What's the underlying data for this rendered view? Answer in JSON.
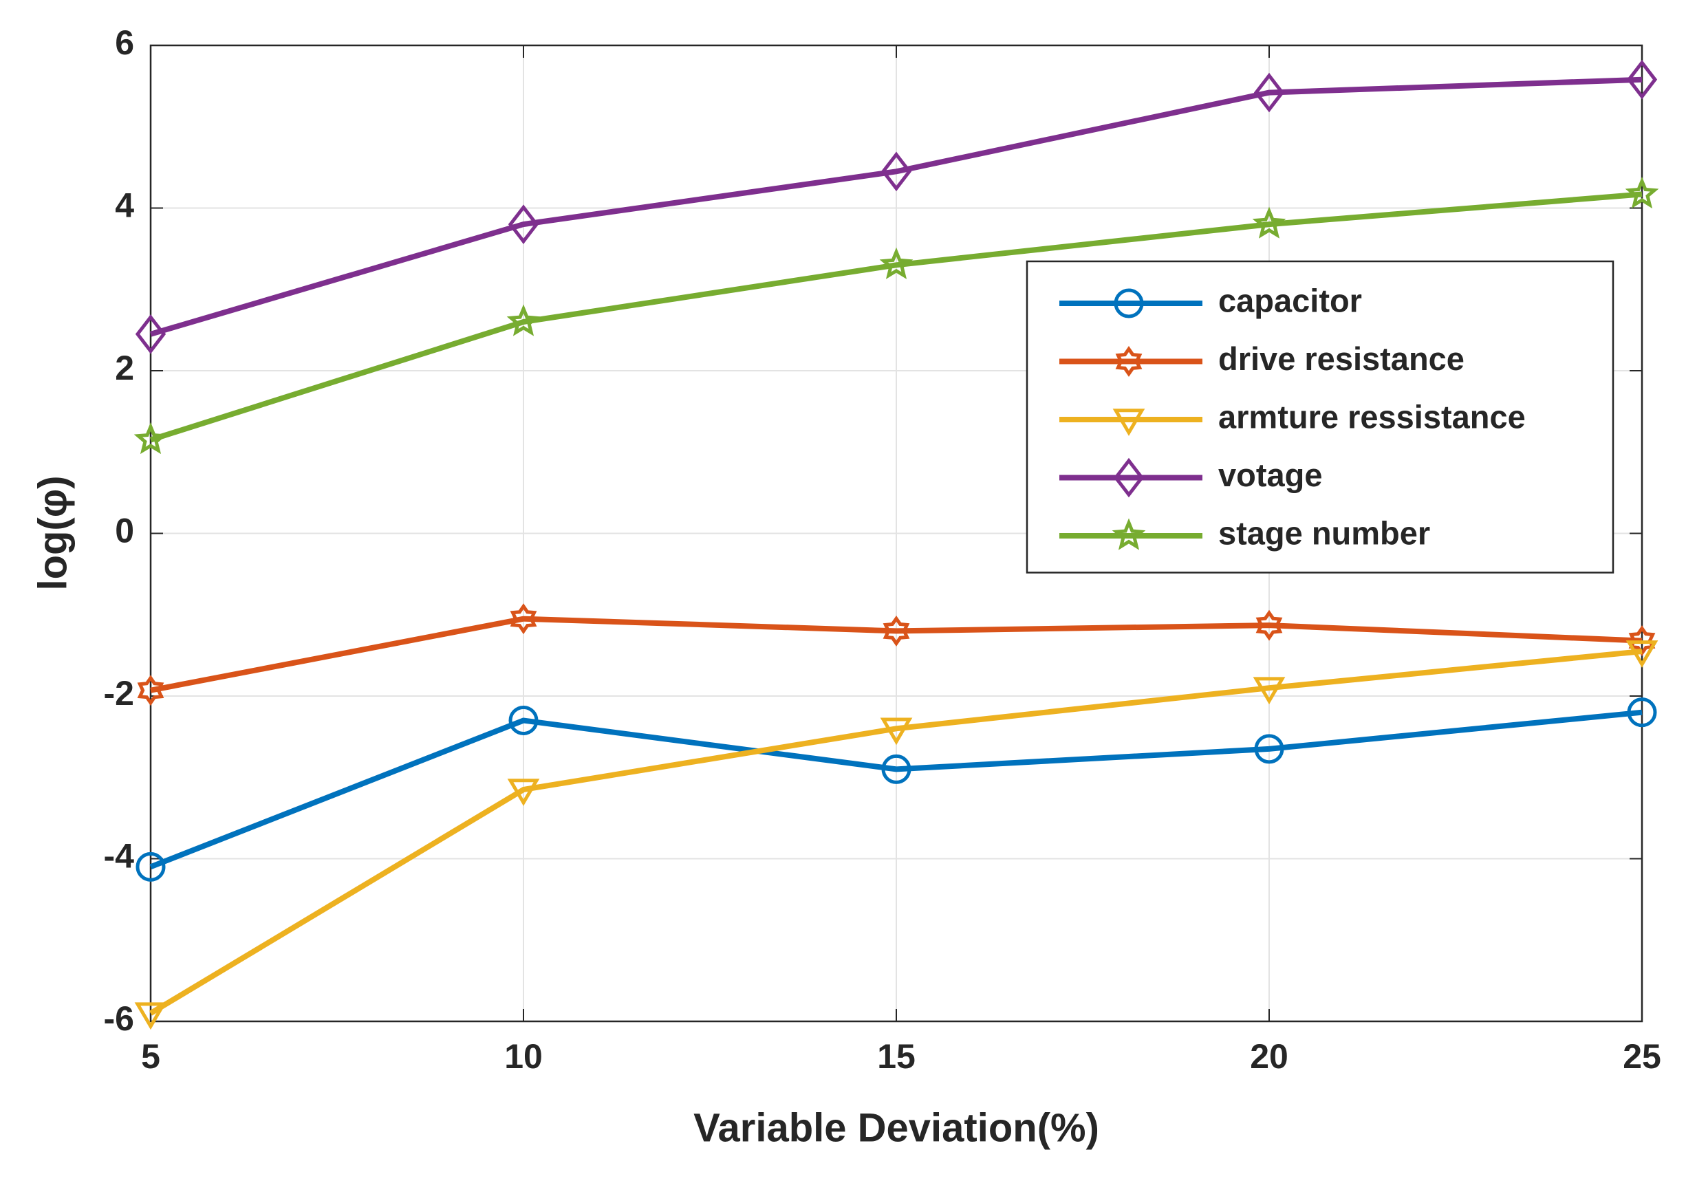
{
  "chart_data": {
    "type": "line",
    "x_label": "Variable Deviation(%)",
    "y_label": "log(φ)",
    "x": [
      5,
      10,
      15,
      20,
      25
    ],
    "series": [
      {
        "name": "capacitor",
        "color": "#0072bd",
        "marker": "circle",
        "values": [
          -4.1,
          -2.3,
          -2.9,
          -2.65,
          -2.2
        ]
      },
      {
        "name": "drive resistance",
        "color": "#d95319",
        "marker": "hexagram",
        "values": [
          -1.93,
          -1.05,
          -1.2,
          -1.13,
          -1.32
        ]
      },
      {
        "name": "armture ressistance",
        "color": "#edb120",
        "marker": "triangle-down",
        "values": [
          -5.9,
          -3.15,
          -2.4,
          -1.9,
          -1.45
        ]
      },
      {
        "name": "votage",
        "color": "#7e2f8e",
        "marker": "diamond",
        "values": [
          2.45,
          3.8,
          4.45,
          5.42,
          5.58
        ]
      },
      {
        "name": "stage number",
        "color": "#77ac30",
        "marker": "pentagram",
        "values": [
          1.15,
          2.6,
          3.3,
          3.8,
          4.17
        ]
      }
    ],
    "xlim": [
      5,
      25
    ],
    "xticks": [
      5,
      10,
      15,
      20,
      25
    ],
    "ylim": [
      -6,
      6
    ],
    "yticks": [
      -6,
      -4,
      -2,
      0,
      2,
      4,
      6
    ],
    "grid": true,
    "legend": "upper right"
  }
}
